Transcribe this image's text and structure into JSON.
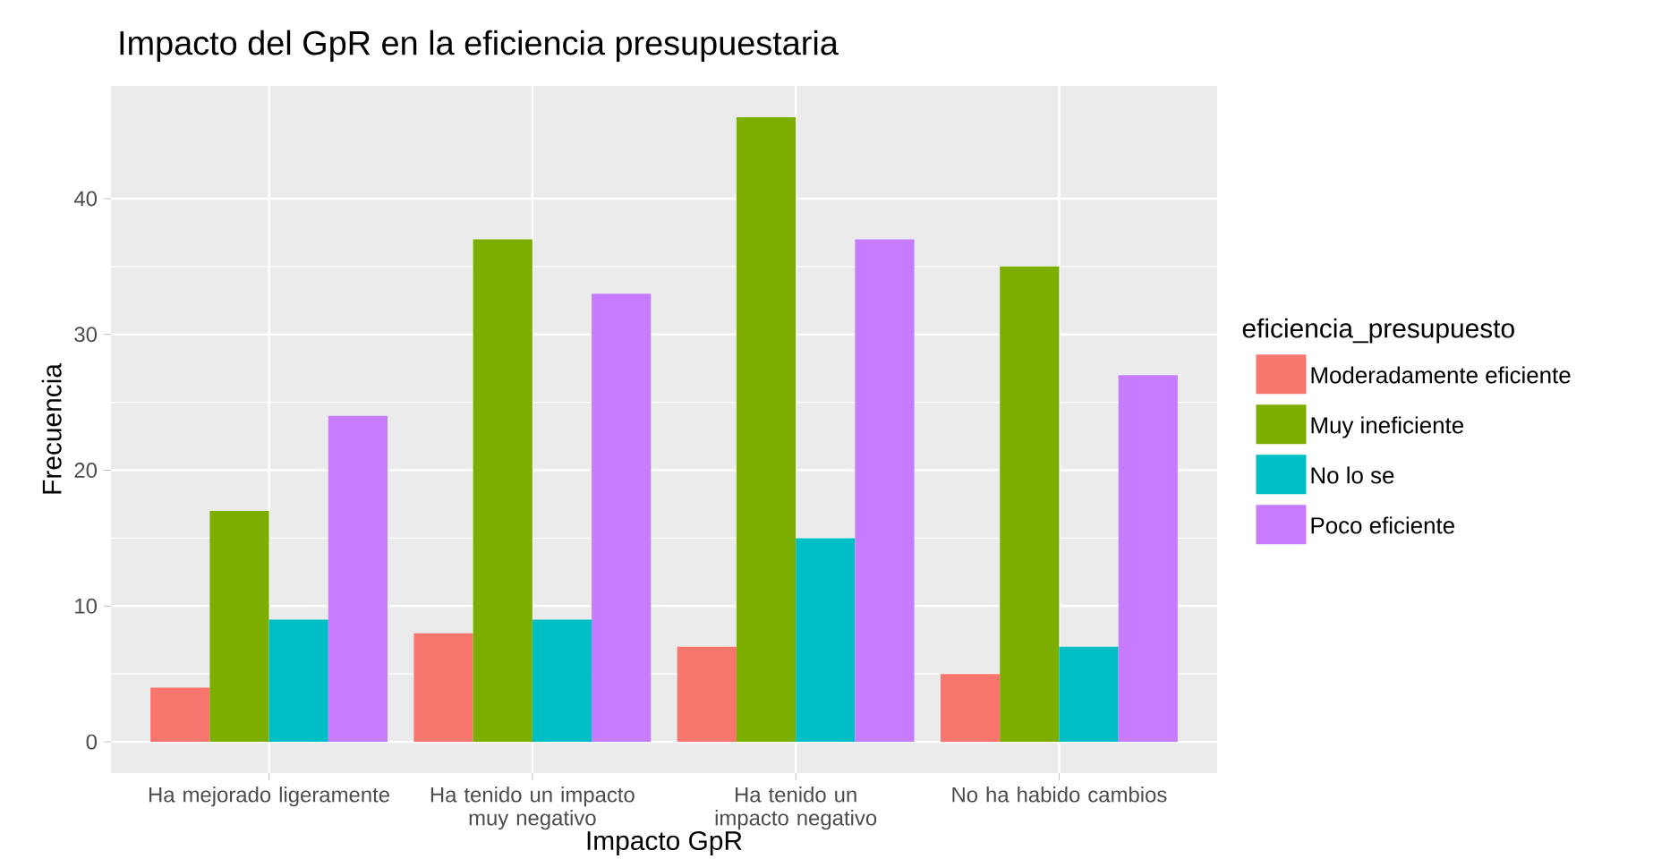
{
  "chart_data": {
    "type": "bar",
    "title": "Impacto del GpR en la eficiencia presupuestaria",
    "xlabel": "Impacto GpR",
    "ylabel": "Frecuencia",
    "legend_title": "eficiencia_presupuesto",
    "categories": [
      "Ha mejorado ligeramente",
      "Ha tenido un impacto muy negativo",
      "Ha tenido un impacto negativo",
      "No ha habido cambios"
    ],
    "series": [
      {
        "name": "Moderadamente eficiente",
        "color": "#f8766d",
        "values": [
          4,
          8,
          7,
          5
        ]
      },
      {
        "name": "Muy ineficiente",
        "color": "#7cae00",
        "values": [
          17,
          37,
          46,
          35
        ]
      },
      {
        "name": "No lo se",
        "color": "#00bfc4",
        "values": [
          9,
          9,
          15,
          7
        ]
      },
      {
        "name": "Poco eficiente",
        "color": "#c77cff",
        "values": [
          24,
          33,
          37,
          27
        ]
      }
    ],
    "ylim": [
      -2.3,
      48.3
    ],
    "yticks": [
      0,
      10,
      20,
      30,
      40
    ],
    "grid": true,
    "legend": "right"
  }
}
